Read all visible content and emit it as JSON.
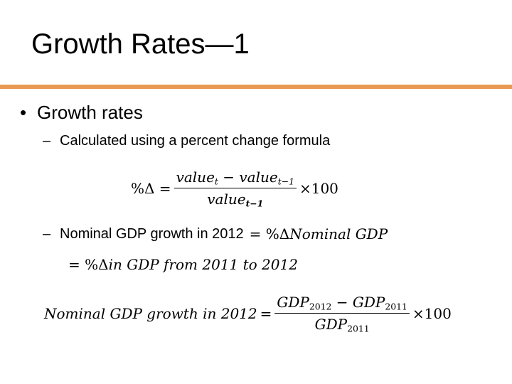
{
  "title": "Growth Rates—1",
  "colors": {
    "accent_rule": "#e89a52",
    "text": "#000000",
    "background": "#ffffff"
  },
  "bullet": {
    "marker": "•",
    "text": "Growth rates"
  },
  "sub1": {
    "marker": "–",
    "text": "Calculated using a percent change formula"
  },
  "formula1": {
    "lhs": "%Δ =",
    "num_a": "value",
    "num_a_sub": "t",
    "minus": "−",
    "num_b": "value",
    "num_b_sub": "t−1",
    "den": "value",
    "den_sub": "t−1",
    "times": "×100"
  },
  "sub2": {
    "marker": "–",
    "text": "Nominal GDP growth in 2012",
    "eq": "=",
    "pct": "%Δ",
    "rhs": "Nominal GDP"
  },
  "formula2": {
    "eq": "=",
    "pct": "%Δ",
    "rhs": "in GDP from 2011 to 2012"
  },
  "formula3": {
    "lhs": "Nominal GDP growth in 2012",
    "eq": "=",
    "num_a": "GDP",
    "num_a_sub": "2012",
    "minus": "−",
    "num_b": "GDP",
    "num_b_sub": "2011",
    "den": "GDP",
    "den_sub": "2011",
    "times": "×100"
  }
}
